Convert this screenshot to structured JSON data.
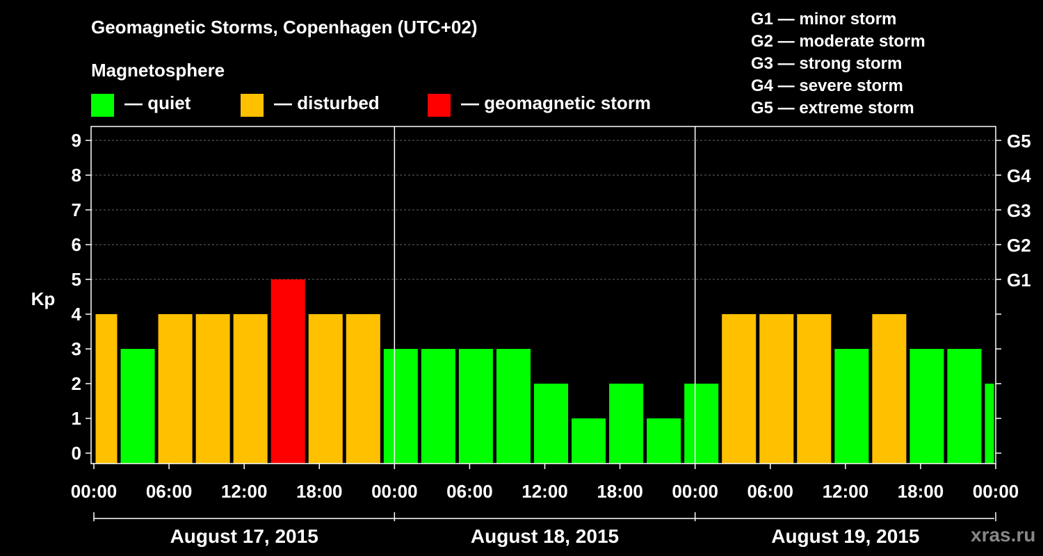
{
  "header": {
    "title": "Geomagnetic Storms, Copenhagen (UTC+02)",
    "magnetosphere_label": "Magnetosphere"
  },
  "legend": [
    {
      "label": "— quiet",
      "color": "#00ff00"
    },
    {
      "label": "— disturbed",
      "color": "#ffc000"
    },
    {
      "label": "— geomagnetic storm",
      "color": "#ff0000"
    }
  ],
  "storm_scale": [
    "G1 — minor storm",
    "G2 — moderate storm",
    "G3 — strong storm",
    "G4 — severe storm",
    "G5 — extreme storm"
  ],
  "watermark": "xras.ru",
  "chart_data": {
    "type": "bar",
    "ylabel": "Kp",
    "ylim": [
      0,
      9
    ],
    "yticks": [
      "0",
      "1",
      "2",
      "3",
      "4",
      "5",
      "6",
      "7",
      "8",
      "9"
    ],
    "right_ticks": [
      {
        "kp": 5,
        "label": "G1"
      },
      {
        "kp": 6,
        "label": "G2"
      },
      {
        "kp": 7,
        "label": "G3"
      },
      {
        "kp": 8,
        "label": "G4"
      },
      {
        "kp": 9,
        "label": "G5"
      }
    ],
    "xtick_labels": [
      "00:00",
      "06:00",
      "12:00",
      "18:00",
      "00:00",
      "06:00",
      "12:00",
      "18:00",
      "00:00",
      "06:00",
      "12:00",
      "18:00",
      "00:00"
    ],
    "days": [
      "August 17, 2015",
      "August 18, 2015",
      "August 19, 2015"
    ],
    "grid": true,
    "bars": [
      {
        "start": "Aug 17 00:00",
        "end": "Aug 17 02:00",
        "kp": 4,
        "status": "disturbed"
      },
      {
        "start": "Aug 17 02:00",
        "end": "Aug 17 05:00",
        "kp": 3,
        "status": "quiet"
      },
      {
        "start": "Aug 17 05:00",
        "end": "Aug 17 08:00",
        "kp": 4,
        "status": "disturbed"
      },
      {
        "start": "Aug 17 08:00",
        "end": "Aug 17 11:00",
        "kp": 4,
        "status": "disturbed"
      },
      {
        "start": "Aug 17 11:00",
        "end": "Aug 17 14:00",
        "kp": 4,
        "status": "disturbed"
      },
      {
        "start": "Aug 17 14:00",
        "end": "Aug 17 17:00",
        "kp": 5,
        "status": "storm"
      },
      {
        "start": "Aug 17 17:00",
        "end": "Aug 17 20:00",
        "kp": 4,
        "status": "disturbed"
      },
      {
        "start": "Aug 17 20:00",
        "end": "Aug 17 23:00",
        "kp": 4,
        "status": "disturbed"
      },
      {
        "start": "Aug 17 23:00",
        "end": "Aug 18 02:00",
        "kp": 3,
        "status": "quiet"
      },
      {
        "start": "Aug 18 02:00",
        "end": "Aug 18 05:00",
        "kp": 3,
        "status": "quiet"
      },
      {
        "start": "Aug 18 05:00",
        "end": "Aug 18 08:00",
        "kp": 3,
        "status": "quiet"
      },
      {
        "start": "Aug 18 08:00",
        "end": "Aug 18 11:00",
        "kp": 3,
        "status": "quiet"
      },
      {
        "start": "Aug 18 11:00",
        "end": "Aug 18 14:00",
        "kp": 2,
        "status": "quiet"
      },
      {
        "start": "Aug 18 14:00",
        "end": "Aug 18 17:00",
        "kp": 1,
        "status": "quiet"
      },
      {
        "start": "Aug 18 17:00",
        "end": "Aug 18 20:00",
        "kp": 2,
        "status": "quiet"
      },
      {
        "start": "Aug 18 20:00",
        "end": "Aug 18 23:00",
        "kp": 1,
        "status": "quiet"
      },
      {
        "start": "Aug 18 23:00",
        "end": "Aug 19 02:00",
        "kp": 2,
        "status": "quiet"
      },
      {
        "start": "Aug 19 02:00",
        "end": "Aug 19 05:00",
        "kp": 4,
        "status": "disturbed"
      },
      {
        "start": "Aug 19 05:00",
        "end": "Aug 19 08:00",
        "kp": 4,
        "status": "disturbed"
      },
      {
        "start": "Aug 19 08:00",
        "end": "Aug 19 11:00",
        "kp": 4,
        "status": "disturbed"
      },
      {
        "start": "Aug 19 11:00",
        "end": "Aug 19 14:00",
        "kp": 3,
        "status": "quiet"
      },
      {
        "start": "Aug 19 14:00",
        "end": "Aug 19 17:00",
        "kp": 4,
        "status": "disturbed"
      },
      {
        "start": "Aug 19 17:00",
        "end": "Aug 19 20:00",
        "kp": 3,
        "status": "quiet"
      },
      {
        "start": "Aug 19 20:00",
        "end": "Aug 19 23:00",
        "kp": 3,
        "status": "quiet"
      },
      {
        "start": "Aug 19 23:00",
        "end": "Aug 20 00:00",
        "kp": 2,
        "status": "quiet"
      }
    ],
    "colors": {
      "quiet": "#00ff00",
      "disturbed": "#ffc000",
      "storm": "#ff0000"
    }
  }
}
